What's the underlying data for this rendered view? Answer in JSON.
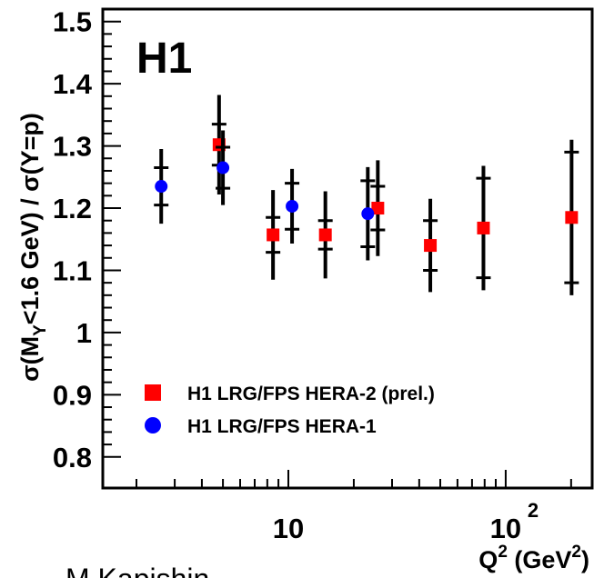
{
  "chart_data": {
    "type": "scatter",
    "annotation": "H1",
    "author": "M.Kapishin",
    "ylabel": [
      "σ(M",
      "Y",
      "<1.6 GeV) / σ(Y=p)"
    ],
    "xlabel": [
      "Q",
      "2",
      " (GeV",
      "2",
      ")"
    ],
    "xscale": "log",
    "xlim": [
      1.4,
      250
    ],
    "ylim": [
      0.75,
      1.52
    ],
    "xticks": [
      10,
      {
        "value": 100,
        "label": "10",
        "label_exponent": "2"
      }
    ],
    "yticks": [
      0.8,
      0.9,
      1,
      1.1,
      1.2,
      1.3,
      1.4,
      1.5
    ],
    "legend": "lower left",
    "series": [
      {
        "name": "H1 LRG/FPS HERA-2 (prel.)",
        "color": "#ff0000",
        "marker": "square",
        "x": [
          4.8,
          8.5,
          14.8,
          25.8,
          45,
          79,
          201
        ],
        "values": [
          1.302,
          1.157,
          1.157,
          1.2,
          1.14,
          1.168,
          1.185
        ],
        "stat_errors": [
          0.033,
          0.028,
          0.023,
          0.035,
          0.04,
          0.08,
          0.105
        ],
        "total_errors": [
          0.08,
          0.072,
          0.07,
          0.077,
          0.075,
          0.1,
          0.125
        ]
      },
      {
        "name": "H1 LRG/FPS HERA-1",
        "color": "#0000ff",
        "marker": "circle",
        "x": [
          2.6,
          5.0,
          10.4,
          23.2
        ],
        "values": [
          1.235,
          1.265,
          1.203,
          1.191
        ],
        "stat_errors": [
          0.03,
          0.033,
          0.037,
          0.053
        ],
        "total_errors": [
          0.06,
          0.06,
          0.06,
          0.075
        ]
      }
    ]
  }
}
